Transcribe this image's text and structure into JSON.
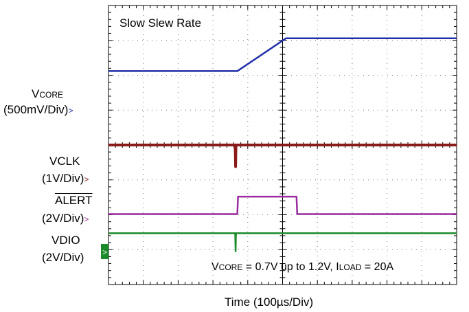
{
  "chart_data": {
    "type": "line",
    "title": "Slow Slew Rate",
    "xlabel": "Time (100µs/Div)",
    "x_divisions": 10,
    "y_divisions": 8,
    "annotation": {
      "v": "V",
      "v_sub": "CORE",
      "mid": " = 0.7V up to 1.2V, I",
      "i_sub": "LOAD",
      "end": " = 20A"
    },
    "channels": [
      {
        "name_main": "V",
        "name_sub": "CORE",
        "scale": "(500mV/Div)",
        "color": "#1f2fa8",
        "points": [
          [
            0,
            6.12
          ],
          [
            3.7,
            6.12
          ],
          [
            5.1,
            7.06
          ],
          [
            10,
            7.06
          ]
        ]
      },
      {
        "name_main": "VCLK",
        "scale": "(1V/Div)",
        "color": "#8b1a1a",
        "points": [
          [
            0,
            4.0
          ],
          [
            3.64,
            4.0
          ],
          [
            3.65,
            3.38
          ],
          [
            3.66,
            4.0
          ],
          [
            10,
            4.0
          ]
        ]
      },
      {
        "name_main": "ALERT",
        "overline": true,
        "scale": "(2V/Div)",
        "color": "#9a2aa0",
        "points": [
          [
            0,
            2.02
          ],
          [
            3.7,
            2.02
          ],
          [
            3.72,
            2.52
          ],
          [
            5.4,
            2.52
          ],
          [
            5.42,
            2.02
          ],
          [
            10,
            2.02
          ]
        ]
      },
      {
        "name_main": "VDIO",
        "scale": "(2V/Div)",
        "color": "#1a8a2a",
        "points": [
          [
            0,
            1.47
          ],
          [
            3.64,
            1.47
          ],
          [
            3.65,
            0.95
          ],
          [
            3.66,
            1.47
          ],
          [
            10,
            1.47
          ]
        ]
      }
    ]
  }
}
